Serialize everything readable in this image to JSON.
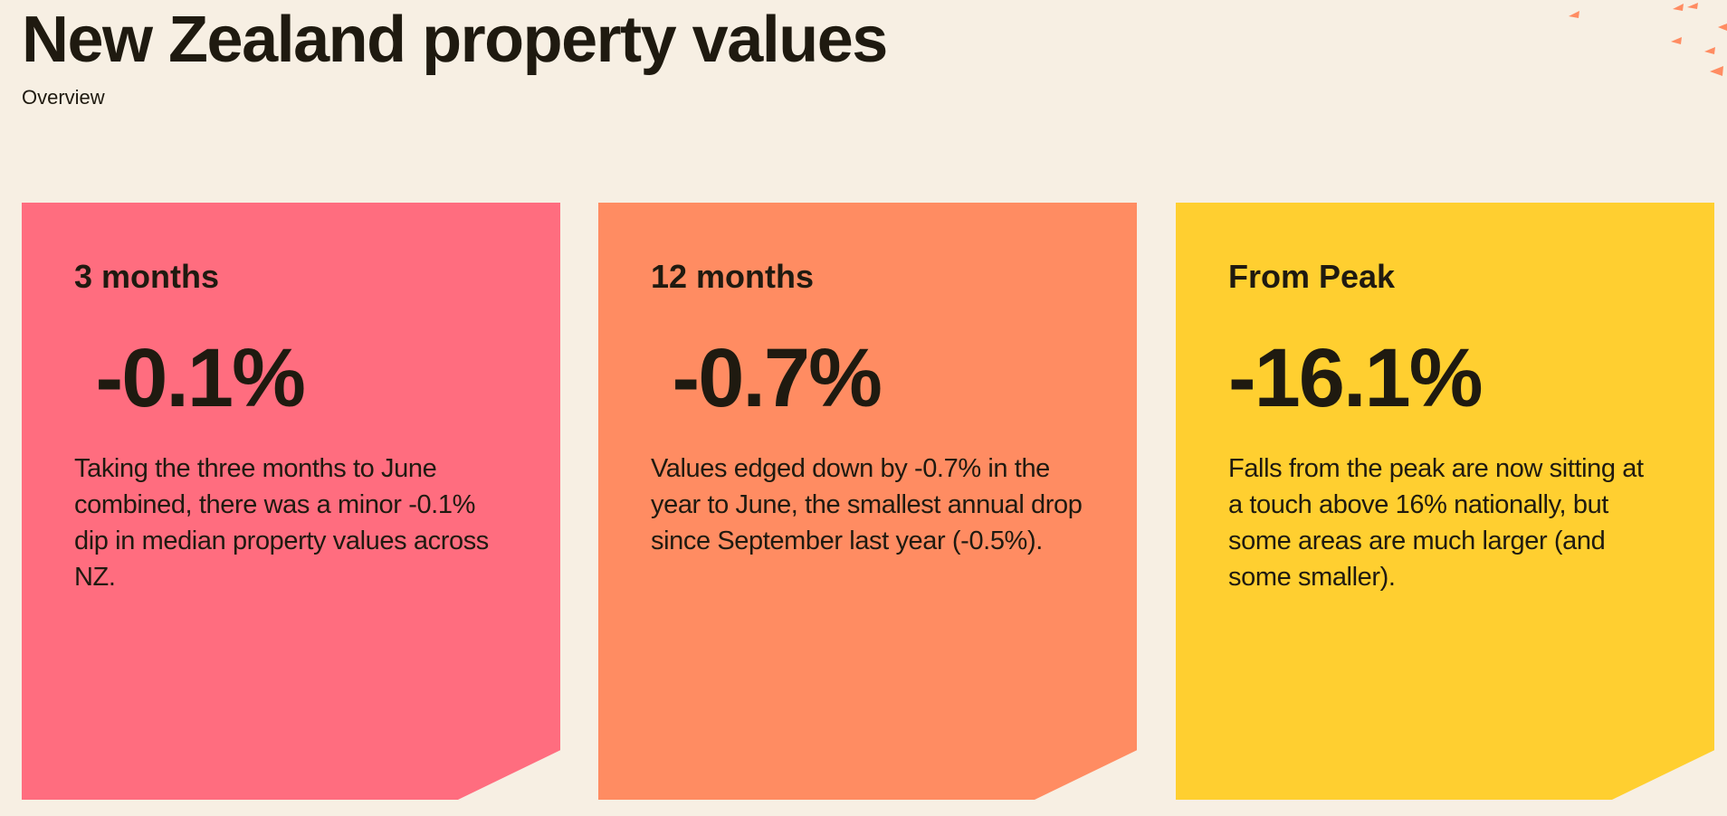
{
  "header": {
    "title": "New Zealand property values",
    "subtitle": "Overview"
  },
  "cards": [
    {
      "label": "3 months",
      "value": " -0.1%",
      "description": "Taking the three months to June combined, there was a minor -0.1% dip in median property values across NZ.",
      "color": "#ff6d7f"
    },
    {
      "label": "12 months",
      "value": " -0.7%",
      "description": "Values edged down by -0.7% in the year to June, the smallest annual drop since September last year (-0.5%).",
      "color": "#ff8c62"
    },
    {
      "label": "From Peak",
      "value": "-16.1%",
      "description": "Falls from the peak are now sitting at a touch above 16% nationally, but some areas are much larger (and some smaller).",
      "color": "#ffcf30"
    }
  ],
  "colors": {
    "background": "#f7efe3",
    "text": "#1f1a10",
    "decor_accent": "#ff8c62"
  },
  "icons": {
    "decor": "confetti-triangles-icon"
  }
}
